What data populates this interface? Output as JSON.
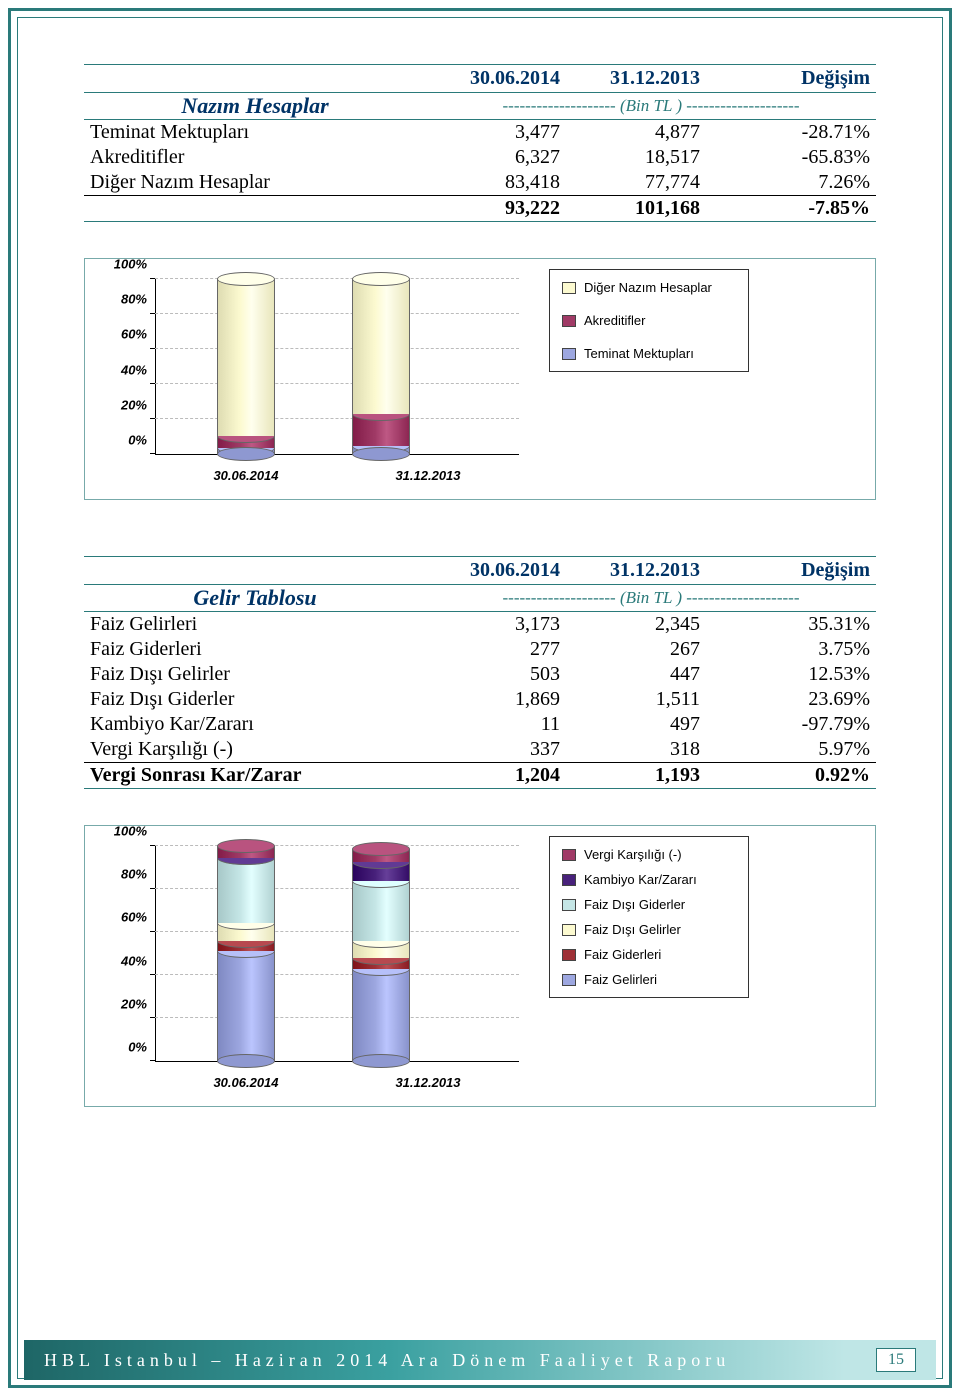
{
  "colors": {
    "frame": "#2a7a7a",
    "heading": "#003366",
    "sub": "#2a7a7a"
  },
  "table1": {
    "hdr": {
      "c1": "30.06.2014",
      "c2": "31.12.2013",
      "c3": "Değişim"
    },
    "sub": "-------------------- (Bin TL ) --------------------",
    "title": "Nazım Hesaplar",
    "rows": [
      {
        "label": "Teminat Mektupları",
        "c1": "3,477",
        "c2": "4,877",
        "c3": "-28.71%"
      },
      {
        "label": "Akreditifler",
        "c1": "6,327",
        "c2": "18,517",
        "c3": "-65.83%"
      },
      {
        "label": "Diğer Nazım Hesaplar",
        "c1": "83,418",
        "c2": "77,774",
        "c3": "7.26%"
      }
    ],
    "total": {
      "c1": "93,222",
      "c2": "101,168",
      "c3": "-7.85%"
    }
  },
  "chart1": {
    "type": "stacked-cylinder",
    "categories": [
      "30.06.2014",
      "31.12.2013"
    ],
    "yticks": [
      "0%",
      "20%",
      "40%",
      "60%",
      "80%",
      "100%"
    ],
    "series": [
      {
        "name": "Diğer Nazım Hesaplar",
        "color": "#fcfad0",
        "values": [
          89.5,
          76.9
        ]
      },
      {
        "name": "Akreditifler",
        "color": "#a03a66",
        "values": [
          6.8,
          18.3
        ]
      },
      {
        "name": "Teminat Mektupları",
        "color": "#9da7e0",
        "values": [
          3.7,
          4.8
        ]
      }
    ],
    "background": "#ffffff",
    "cylinder_width": 58
  },
  "table2": {
    "hdr": {
      "c1": "30.06.2014",
      "c2": "31.12.2013",
      "c3": "Değişim"
    },
    "sub": "-------------------- (Bin TL ) --------------------",
    "title": "Gelir Tablosu",
    "rows": [
      {
        "label": "Faiz Gelirleri",
        "c1": "3,173",
        "c2": "2,345",
        "c3": "35.31%"
      },
      {
        "label": "Faiz Giderleri",
        "c1": "277",
        "c2": "267",
        "c3": "3.75%"
      },
      {
        "label": "Faiz Dışı Gelirler",
        "c1": "503",
        "c2": "447",
        "c3": "12.53%"
      },
      {
        "label": "Faiz Dışı Giderler",
        "c1": "1,869",
        "c2": "1,511",
        "c3": "23.69%"
      },
      {
        "label": "Kambiyo Kar/Zararı",
        "c1": "11",
        "c2": "497",
        "c3": "-97.79%"
      },
      {
        "label": "Vergi Karşılığı (-)",
        "c1": "337",
        "c2": "318",
        "c3": "5.97%"
      }
    ],
    "total": {
      "label": "Vergi Sonrası Kar/Zarar",
      "c1": "1,204",
      "c2": "1,193",
      "c3": "0.92%"
    }
  },
  "chart2": {
    "type": "stacked-cylinder",
    "categories": [
      "30.06.2014",
      "31.12.2013"
    ],
    "yticks": [
      "0%",
      "20%",
      "40%",
      "60%",
      "80%",
      "100%"
    ],
    "series": [
      {
        "name": "Vergi Karşılığı (-)",
        "color": "#a03a66",
        "values": [
          5.5,
          5.8
        ]
      },
      {
        "name": "Kambiyo Kar/Zararı",
        "color": "#48217b",
        "values": [
          0.2,
          9.1
        ]
      },
      {
        "name": "Faiz Dışı Giderler",
        "color": "#c5e6e6",
        "values": [
          30.3,
          27.6
        ]
      },
      {
        "name": "Faiz Dışı Gelirler",
        "color": "#fcfad0",
        "values": [
          8.1,
          8.2
        ]
      },
      {
        "name": "Faiz Giderleri",
        "color": "#9e3036",
        "values": [
          4.5,
          4.9
        ]
      },
      {
        "name": "Faiz Gelirleri",
        "color": "#9da7e0",
        "values": [
          51.4,
          42.8
        ]
      }
    ],
    "background": "#ffffff",
    "cylinder_width": 58
  },
  "footer": {
    "text": "HBL Istanbul – Haziran 2014 Ara Dönem Faaliyet Raporu",
    "page": "15"
  }
}
